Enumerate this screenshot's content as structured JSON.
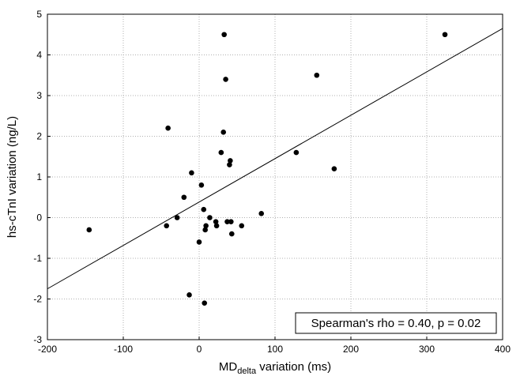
{
  "chart_data": {
    "type": "scatter",
    "title": "",
    "xlabel_main": "MD",
    "xlabel_sub": "delta",
    "xlabel_rest": " variation (ms)",
    "ylabel": "hs-cTnI variation (ng/L)",
    "xlim": [
      -200,
      400
    ],
    "ylim": [
      -3,
      5
    ],
    "xticks": [
      -200,
      -100,
      0,
      100,
      200,
      300,
      400
    ],
    "yticks": [
      -3,
      -2,
      -1,
      0,
      1,
      2,
      3,
      4,
      5
    ],
    "grid": true,
    "points": [
      {
        "x": -145,
        "y": -0.3
      },
      {
        "x": -43,
        "y": -0.2
      },
      {
        "x": -41,
        "y": 2.2
      },
      {
        "x": -29,
        "y": 0.0
      },
      {
        "x": -20,
        "y": 0.5
      },
      {
        "x": -13,
        "y": -1.9
      },
      {
        "x": -10,
        "y": 1.1
      },
      {
        "x": 0,
        "y": -0.6
      },
      {
        "x": 3,
        "y": 0.8
      },
      {
        "x": 6,
        "y": 0.2
      },
      {
        "x": 7,
        "y": -2.1
      },
      {
        "x": 8,
        "y": -0.3
      },
      {
        "x": 9,
        "y": -0.2
      },
      {
        "x": 14,
        "y": 0.0
      },
      {
        "x": 22,
        "y": -0.1
      },
      {
        "x": 23,
        "y": -0.2
      },
      {
        "x": 29,
        "y": 1.6
      },
      {
        "x": 32,
        "y": 2.1
      },
      {
        "x": 33,
        "y": 4.5
      },
      {
        "x": 35,
        "y": 3.4
      },
      {
        "x": 37,
        "y": -0.1
      },
      {
        "x": 40,
        "y": 1.3
      },
      {
        "x": 41,
        "y": 1.4
      },
      {
        "x": 42,
        "y": -0.1
      },
      {
        "x": 43,
        "y": -0.4
      },
      {
        "x": 56,
        "y": -0.2
      },
      {
        "x": 82,
        "y": 0.1
      },
      {
        "x": 128,
        "y": 1.6
      },
      {
        "x": 155,
        "y": 3.5
      },
      {
        "x": 178,
        "y": 1.2
      },
      {
        "x": 324,
        "y": 4.5
      }
    ],
    "trend_line": {
      "x": [
        -200,
        400
      ],
      "y": [
        -1.75,
        4.65
      ]
    },
    "annotation": "Spearman's rho = 0.40, p = 0.02",
    "annotation_position": "bottom-right",
    "colors": {
      "points": "#000000",
      "line": "#000000",
      "grid": "#b0b0b0",
      "frame": "#000000"
    }
  }
}
